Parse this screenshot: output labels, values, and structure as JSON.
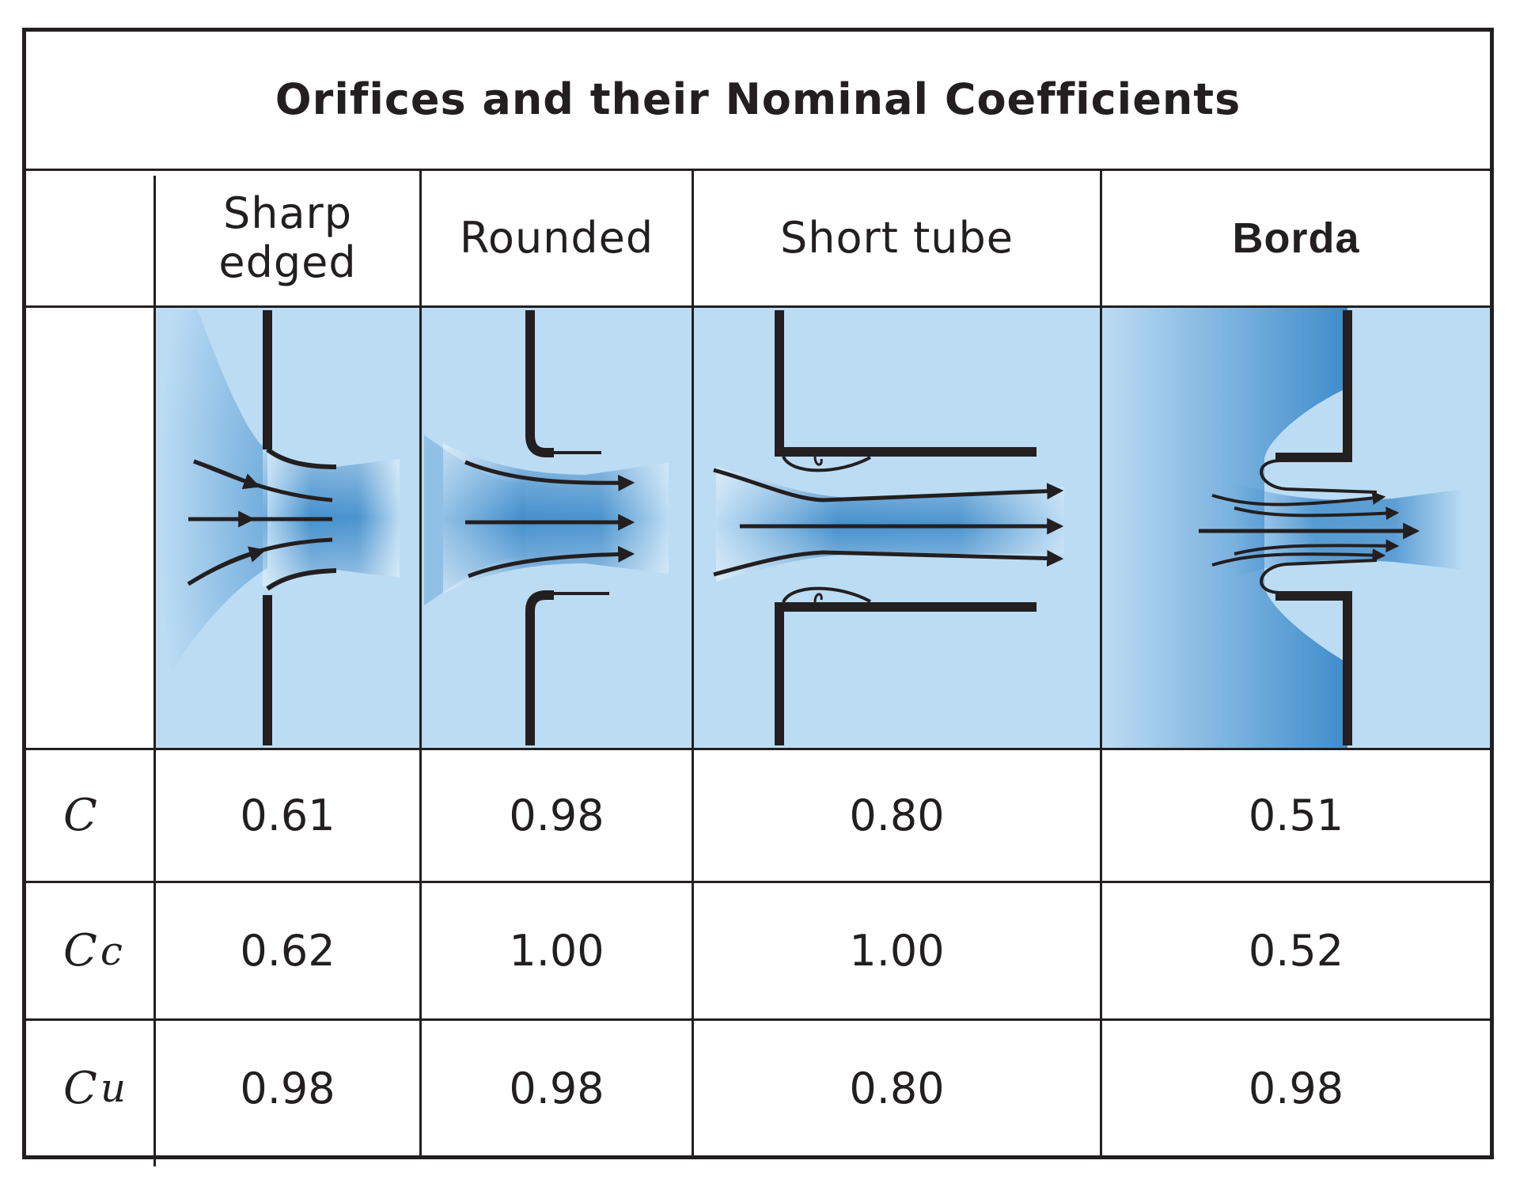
{
  "title": "Orifices and their Nominal Coefficients",
  "columns": [
    {
      "id": "sharp",
      "label_line1": "Sharp",
      "label_line2": "edged"
    },
    {
      "id": "rounded",
      "label_line1": "Rounded"
    },
    {
      "id": "short-tube",
      "label_line1": "Short tube"
    },
    {
      "id": "borda",
      "label_line1": "Borda"
    }
  ],
  "rows": [
    {
      "symbol": "C",
      "subscript": "",
      "values": [
        "0.61",
        "0.98",
        "0.80",
        "0.51"
      ]
    },
    {
      "symbol": "C",
      "subscript": "c",
      "values": [
        "0.62",
        "1.00",
        "1.00",
        "0.52"
      ]
    },
    {
      "symbol": "C",
      "subscript": "u",
      "values": [
        "0.98",
        "0.98",
        "0.80",
        "0.98"
      ]
    }
  ],
  "colors": {
    "water": "#bcdcf4",
    "jet": "#3f8ccb",
    "wall": "#231f20"
  }
}
